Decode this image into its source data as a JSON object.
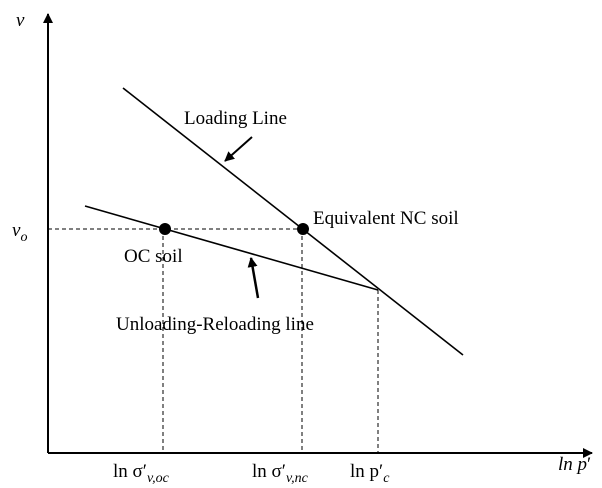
{
  "axes": {
    "y_label": "v",
    "x_label": {
      "base": "ln p",
      "prime": "′"
    }
  },
  "lines": {
    "loading": "Loading Line",
    "unloading": "Unloading-Reloading line"
  },
  "points": {
    "oc": "OC soil",
    "nc": "Equivalent NC soil"
  },
  "v0": {
    "base": "v",
    "sub": "o"
  },
  "x_marks": [
    {
      "base": "ln σ′",
      "sub": "v,oc"
    },
    {
      "base": "ln σ′",
      "sub": "v,nc"
    },
    {
      "base": "ln p′",
      "sub": "c"
    }
  ]
}
